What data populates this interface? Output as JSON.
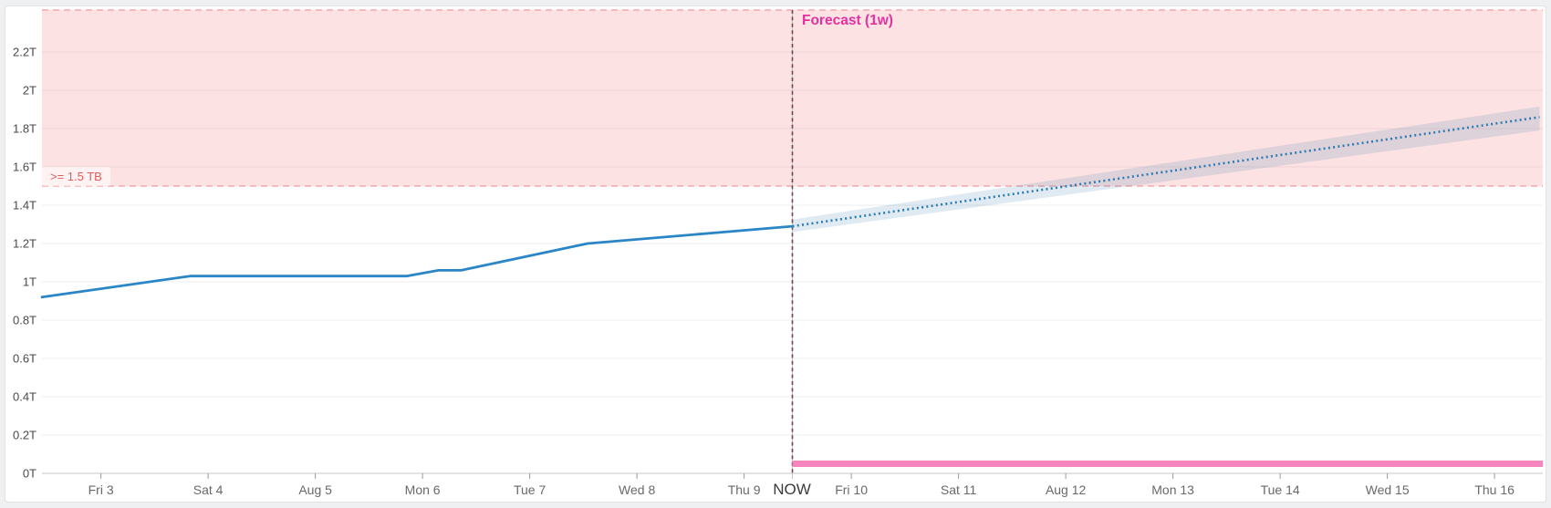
{
  "page": {
    "background_color": "#eff0f1"
  },
  "panel": {
    "background_color": "#ffffff",
    "border_color": "#e2e2e2"
  },
  "colors": {
    "history_line": "#2a86c6",
    "forecast_line": "#2e7cb2",
    "forecast_band": "rgba(70,130,180,0.17)",
    "threshold_fill": "rgba(235,75,80,0.16)",
    "threshold_dash": "#f2a7ae",
    "threshold_text": "#e25c5c",
    "forecast_label_text": "#e6309f",
    "now_line": "#6b4550",
    "now_base_line": "#c2c2c2",
    "secondary_bar": "#f685bd",
    "gridline": "#ededed",
    "axis_line": "#c6c6c6",
    "tick_mark": "#999999",
    "y_label_text": "#4a4a4a",
    "x_label_text": "#696969",
    "now_label_text": "#3b3b3b"
  },
  "chart_data": {
    "type": "line",
    "title": "",
    "xlabel": "",
    "ylabel": "",
    "unit": "TB",
    "forecast_label": "Forecast (1w)",
    "now_label": "NOW",
    "now_day": 6.45,
    "threshold": {
      "label": ">= 1.5 TB",
      "value": 1.5
    },
    "y_axis": {
      "tick_values": [
        0,
        0.2,
        0.4,
        0.6,
        0.8,
        1.0,
        1.2,
        1.4,
        1.6,
        1.8,
        2.0,
        2.2
      ],
      "tick_labels": [
        "0T",
        "0.2T",
        "0.4T",
        "0.6T",
        "0.8T",
        "1T",
        "1.2T",
        "1.4T",
        "1.6T",
        "1.8T",
        "2T",
        "2.2T"
      ],
      "domain": [
        0,
        2.42
      ],
      "grid": true
    },
    "x_axis": {
      "tick_days": [
        0,
        1,
        2,
        3,
        4,
        5,
        6,
        7,
        8,
        9,
        10,
        11,
        12,
        13
      ],
      "tick_labels": [
        "Fri 3",
        "Sat 4",
        "Aug 5",
        "Mon 6",
        "Tue 7",
        "Wed 8",
        "Thu 9",
        "Fri 10",
        "Sat 11",
        "Aug 12",
        "Mon 13",
        "Tue 14",
        "Wed 15",
        "Thu 16"
      ],
      "domain_days": [
        -0.55,
        13.45
      ]
    },
    "series": [
      {
        "name": "usage-history",
        "style": "solid-line",
        "points_day_value": [
          [
            -0.55,
            0.92
          ],
          [
            0.83,
            1.03
          ],
          [
            2.85,
            1.03
          ],
          [
            3.15,
            1.06
          ],
          [
            3.36,
            1.06
          ],
          [
            4.54,
            1.2
          ],
          [
            6.45,
            1.29
          ]
        ]
      },
      {
        "name": "usage-forecast",
        "style": "dotted-line-with-band",
        "points_day_value": [
          [
            6.45,
            1.29
          ],
          [
            13.42,
            1.86
          ]
        ],
        "band_upper_day_value": [
          [
            6.45,
            1.325
          ],
          [
            13.42,
            1.915
          ]
        ],
        "band_lower_day_value": [
          [
            6.45,
            1.26
          ],
          [
            13.42,
            1.79
          ]
        ]
      },
      {
        "name": "secondary-forecast",
        "style": "thick-bar",
        "points_day_value": [
          [
            6.45,
            0.05
          ],
          [
            13.45,
            0.05
          ]
        ]
      }
    ],
    "legend": "none"
  }
}
